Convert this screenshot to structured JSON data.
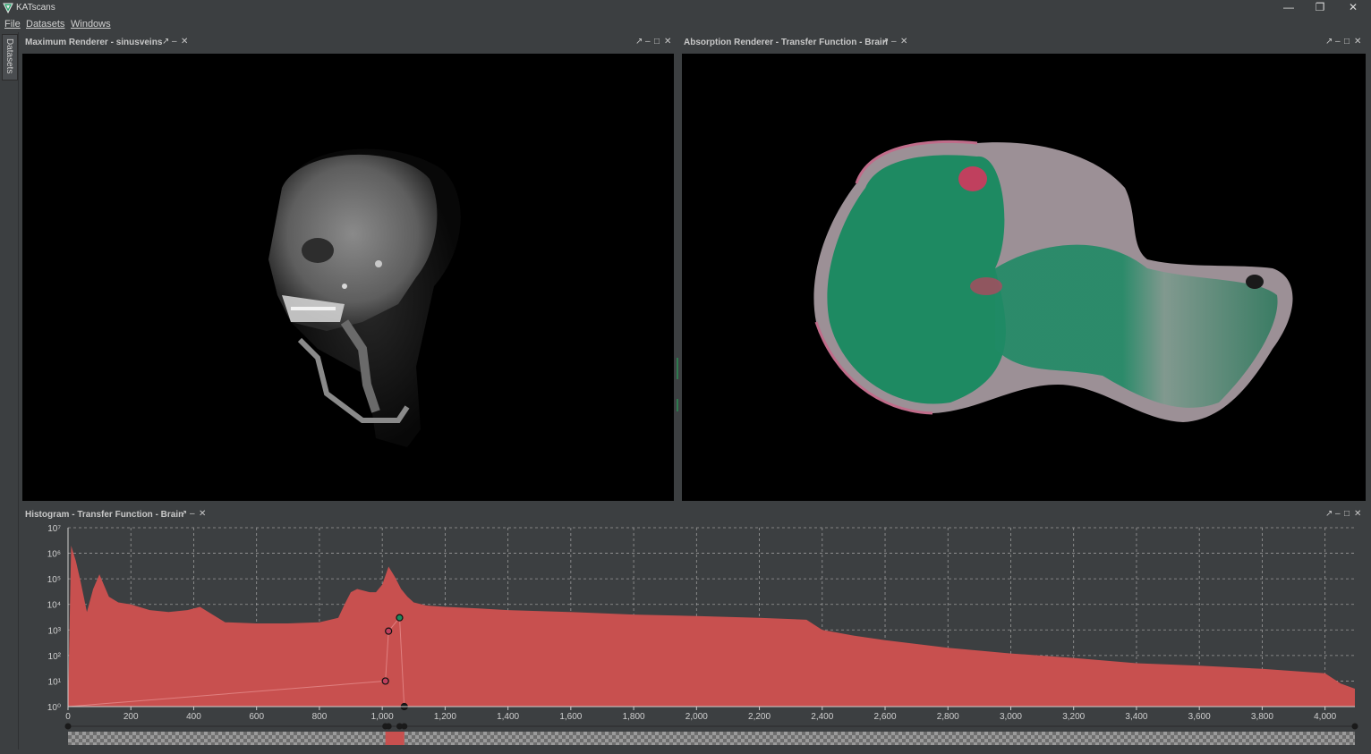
{
  "app": {
    "title": "KATscans",
    "window_controls": {
      "minimize": "—",
      "restore": "❐",
      "close": "✕"
    }
  },
  "menu": [
    "File",
    "Datasets",
    "Windows"
  ],
  "side_tab": "Datasets",
  "panels": {
    "max_renderer": {
      "title": "Maximum Renderer - sinusveins"
    },
    "absorption_renderer": {
      "title": "Absorption Renderer - Transfer Function - Brain"
    },
    "histogram": {
      "title": "Histogram - Transfer Function - Brain"
    }
  },
  "panel_controls": {
    "detach": "↗",
    "minimize": "–",
    "maximize": "□",
    "close": "✕"
  },
  "colors": {
    "background": "#3c3f41",
    "histogram_fill": "#c8504f",
    "tf_point": "#1a1a1a",
    "tf_green": "#1e8a5e",
    "grid": "#9a9a9a"
  },
  "chart_data": {
    "type": "area",
    "title": "",
    "xlabel": "",
    "ylabel": "",
    "y_scale": "log",
    "xlim": [
      0,
      4095
    ],
    "ylim": [
      1,
      10000000
    ],
    "x_ticks": [
      "0",
      "200",
      "400",
      "600",
      "800",
      "1,000",
      "1,200",
      "1,400",
      "1,600",
      "1,800",
      "2,000",
      "2,200",
      "2,400",
      "2,600",
      "2,800",
      "3,000",
      "3,200",
      "3,400",
      "3,600",
      "3,800",
      "4,000"
    ],
    "x_tick_values": [
      0,
      200,
      400,
      600,
      800,
      1000,
      1200,
      1400,
      1600,
      1800,
      2000,
      2200,
      2400,
      2600,
      2800,
      3000,
      3200,
      3400,
      3600,
      3800,
      4000
    ],
    "y_ticks": [
      "10⁰",
      "10¹",
      "10²",
      "10³",
      "10⁴",
      "10⁵",
      "10⁶",
      "10⁷"
    ],
    "y_tick_exponents": [
      0,
      1,
      2,
      3,
      4,
      5,
      6,
      7
    ],
    "grid": true,
    "series": [
      {
        "x": [
          0,
          10,
          25,
          40,
          60,
          80,
          100,
          130,
          160,
          200,
          260,
          320,
          380,
          420,
          460,
          500,
          600,
          700,
          800,
          860,
          880,
          900,
          920,
          960,
          980,
          1000,
          1020,
          1040,
          1060,
          1080,
          1100,
          1140,
          1200,
          1300,
          1400,
          1600,
          1800,
          2000,
          2200,
          2350,
          2400,
          2500,
          2600,
          2800,
          3000,
          3200,
          3400,
          3600,
          3800,
          4000,
          4050,
          4095
        ],
        "y": [
          1,
          2000000,
          500000,
          80000,
          5000,
          40000,
          150000,
          20000,
          12000,
          10000,
          6000,
          5000,
          6000,
          8000,
          4000,
          2000,
          1800,
          1800,
          2000,
          3000,
          10000,
          30000,
          40000,
          30000,
          30000,
          60000,
          300000,
          120000,
          40000,
          20000,
          12000,
          9000,
          8000,
          7000,
          6000,
          5000,
          4000,
          3500,
          3000,
          2500,
          1000,
          600,
          400,
          200,
          120,
          80,
          50,
          40,
          30,
          20,
          8,
          5
        ]
      }
    ],
    "transfer_function_points": [
      {
        "x": 1010,
        "y": 10
      },
      {
        "x": 1020,
        "y": 900
      },
      {
        "x": 1055,
        "y": 3000
      },
      {
        "x": 1070,
        "y": 1
      }
    ]
  }
}
